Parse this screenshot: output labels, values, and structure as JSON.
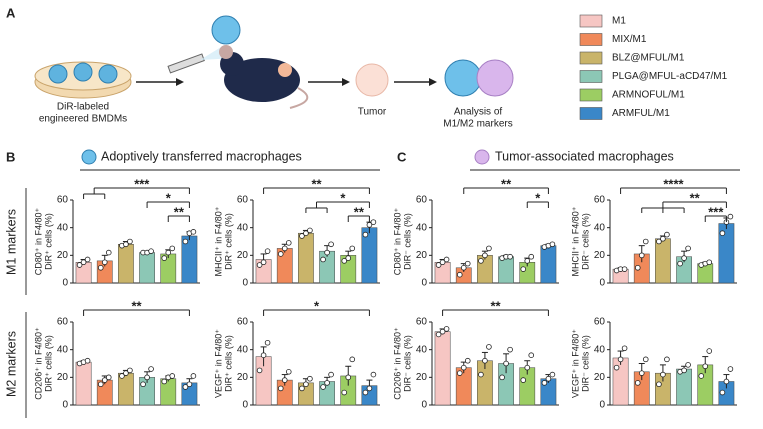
{
  "panel_a": {
    "label": "A",
    "dish_label": [
      "DiR-labeled",
      "engineered BMDMs"
    ],
    "tumor_label": "Tumor",
    "analysis_label": [
      "Analysis of",
      "M1/M2 markers"
    ]
  },
  "legend": [
    {
      "name": "M1",
      "color": "#f6c6c3"
    },
    {
      "name": "MIX/M1",
      "color": "#f0895a"
    },
    {
      "name": "BLZ@MFUL/M1",
      "color": "#c9b46a"
    },
    {
      "name": "PLGA@MFUL-aCD47/M1",
      "color": "#8cc7b5"
    },
    {
      "name": "ARMNOFUL/M1",
      "color": "#9ccd63"
    },
    {
      "name": "ARMFUL/M1",
      "color": "#3a87c8"
    }
  ],
  "panel_b": {
    "label": "B",
    "title": "Adoptively transferred macrophages"
  },
  "panel_c": {
    "label": "C",
    "title": "Tumor-associated macrophages"
  },
  "row_labels": [
    "M1 markers",
    "M2 markers"
  ],
  "chart_data": [
    {
      "type": "bar",
      "ylabel": [
        "CD80⁺ in F4/80⁺",
        "DiR⁺ cells (%)"
      ],
      "ylim": [
        0,
        60
      ],
      "yticks": [
        0,
        20,
        40,
        60
      ],
      "values": [
        15,
        16,
        28,
        22,
        21,
        34
      ],
      "errors": [
        2,
        4,
        2,
        1,
        3,
        3
      ],
      "points": [
        [
          13,
          15,
          17
        ],
        [
          11,
          15,
          22
        ],
        [
          27,
          28,
          30
        ],
        [
          22,
          22,
          23
        ],
        [
          18,
          22,
          25
        ],
        [
          30,
          36,
          37
        ]
      ],
      "brackets": [
        {
          "label": "***",
          "groups": [
            0,
            1,
            5
          ]
        },
        {
          "label": "*",
          "groups": [
            3,
            5
          ]
        },
        {
          "label": "**",
          "groups": [
            4,
            5
          ]
        }
      ]
    },
    {
      "type": "bar",
      "ylabel": [
        "MHCII⁺ in F4/80⁺",
        "DiR⁺ cells (%)"
      ],
      "ylim": [
        0,
        60
      ],
      "yticks": [
        0,
        20,
        40,
        60
      ],
      "values": [
        17,
        25,
        36,
        23,
        20,
        40
      ],
      "errors": [
        4,
        3,
        2,
        4,
        3,
        4
      ],
      "points": [
        [
          13,
          15,
          23
        ],
        [
          21,
          25,
          29
        ],
        [
          34,
          36,
          38
        ],
        [
          17,
          22,
          28
        ],
        [
          16,
          18,
          25
        ],
        [
          35,
          42,
          44
        ]
      ],
      "brackets": [
        {
          "label": "**",
          "groups": [
            0,
            5
          ]
        },
        {
          "label": "*",
          "groups": [
            2,
            3,
            5
          ]
        },
        {
          "label": "**",
          "groups": [
            4,
            5
          ]
        }
      ]
    },
    {
      "type": "bar",
      "ylabel": [
        "CD206⁺ in F4/80⁺",
        "DiR⁺ cells (%)"
      ],
      "ylim": [
        0,
        60
      ],
      "yticks": [
        0,
        20,
        40,
        60
      ],
      "values": [
        31,
        18,
        23,
        20,
        19,
        16
      ],
      "errors": [
        1,
        3,
        2,
        4,
        2,
        3
      ],
      "points": [
        [
          30,
          31,
          32
        ],
        [
          15,
          18,
          20
        ],
        [
          21,
          23,
          25
        ],
        [
          15,
          20,
          26
        ],
        [
          17,
          20,
          21
        ],
        [
          13,
          15,
          21
        ]
      ],
      "brackets": [
        {
          "label": "**",
          "groups": [
            0,
            5
          ]
        }
      ]
    },
    {
      "type": "bar",
      "ylabel": [
        "VEGF⁺ in F4/80⁺",
        "DiR⁺ cells (%)"
      ],
      "ylim": [
        0,
        60
      ],
      "yticks": [
        0,
        20,
        40,
        60
      ],
      "values": [
        35,
        18,
        16,
        17,
        21,
        14
      ],
      "errors": [
        7,
        4,
        3,
        3,
        7,
        4
      ],
      "points": [
        [
          25,
          36,
          45
        ],
        [
          12,
          18,
          24
        ],
        [
          12,
          15,
          19
        ],
        [
          13,
          16,
          22
        ],
        [
          9,
          20,
          33
        ],
        [
          9,
          12,
          22
        ]
      ],
      "brackets": [
        {
          "label": "*",
          "groups": [
            0,
            5
          ]
        }
      ]
    },
    {
      "type": "bar",
      "ylabel": [
        "CD80⁺ in F4/80⁺",
        "DiR⁻ cells (%)"
      ],
      "ylim": [
        0,
        60
      ],
      "yticks": [
        0,
        20,
        40,
        60
      ],
      "values": [
        15,
        11,
        20,
        19,
        15,
        27
      ],
      "errors": [
        2,
        3,
        3,
        1,
        3,
        1
      ],
      "points": [
        [
          13,
          15,
          17
        ],
        [
          6,
          11,
          14
        ],
        [
          16,
          20,
          25
        ],
        [
          18,
          19,
          19
        ],
        [
          10,
          16,
          19
        ],
        [
          26,
          27,
          28
        ]
      ],
      "brackets": [
        {
          "label": "**",
          "groups": [
            1,
            5
          ]
        },
        {
          "label": "*",
          "groups": [
            4,
            5
          ]
        }
      ]
    },
    {
      "type": "bar",
      "ylabel": [
        "MHCII⁺ in F4/80⁺",
        "DiR⁻ cells (%)"
      ],
      "ylim": [
        0,
        60
      ],
      "yticks": [
        0,
        20,
        40,
        60
      ],
      "values": [
        10,
        21,
        32,
        19,
        14,
        43
      ],
      "errors": [
        1,
        6,
        2,
        4,
        1,
        4
      ],
      "points": [
        [
          9,
          10,
          10
        ],
        [
          11,
          20,
          30
        ],
        [
          30,
          32,
          35
        ],
        [
          14,
          18,
          25
        ],
        [
          13,
          14,
          15
        ],
        [
          36,
          44,
          48
        ]
      ],
      "brackets": [
        {
          "label": "****",
          "groups": [
            0,
            5
          ]
        },
        {
          "label": "**",
          "groups": [
            1,
            2,
            3,
            5
          ]
        },
        {
          "label": "***",
          "groups": [
            4,
            5
          ]
        }
      ]
    },
    {
      "type": "bar",
      "ylabel": [
        "CD206⁺ in F4/80⁺",
        "DiR⁻ cells (%)"
      ],
      "ylim": [
        0,
        60
      ],
      "yticks": [
        0,
        20,
        40,
        60
      ],
      "values": [
        53,
        27,
        32,
        30,
        27,
        19
      ],
      "errors": [
        2,
        4,
        6,
        7,
        5,
        3
      ],
      "points": [
        [
          51,
          53,
          55
        ],
        [
          23,
          27,
          32
        ],
        [
          22,
          32,
          42
        ],
        [
          20,
          30,
          40
        ],
        [
          18,
          27,
          36
        ],
        [
          16,
          19,
          22
        ]
      ],
      "brackets": [
        {
          "label": "**",
          "groups": [
            0,
            5
          ]
        }
      ]
    },
    {
      "type": "bar",
      "ylabel": [
        "VEGF⁺ in F4/80⁺",
        "DiR⁻ cells (%)"
      ],
      "ylim": [
        0,
        60
      ],
      "yticks": [
        0,
        20,
        40,
        60
      ],
      "values": [
        34,
        24,
        23,
        26,
        29,
        17
      ],
      "errors": [
        5,
        6,
        6,
        2,
        6,
        5
      ],
      "points": [
        [
          27,
          33,
          41
        ],
        [
          16,
          23,
          33
        ],
        [
          15,
          22,
          33
        ],
        [
          24,
          25,
          29
        ],
        [
          21,
          28,
          39
        ],
        [
          9,
          17,
          26
        ]
      ],
      "brackets": []
    }
  ]
}
